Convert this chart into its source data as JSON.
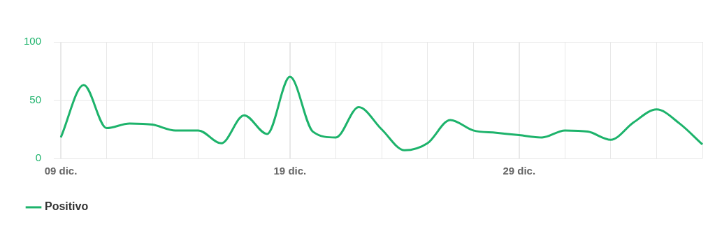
{
  "chart_data": {
    "type": "line",
    "categories": [
      "09 dic.",
      null,
      null,
      null,
      null,
      null,
      null,
      null,
      null,
      null,
      "19 dic.",
      null,
      null,
      null,
      null,
      null,
      null,
      null,
      null,
      null,
      "29 dic.",
      null,
      null,
      null,
      null,
      null,
      null,
      null,
      null
    ],
    "series": [
      {
        "name": "Positivo",
        "color": "#1db36b",
        "values": [
          18,
          63,
          26,
          30,
          29,
          24,
          24,
          13,
          37,
          21,
          70,
          23,
          18,
          44,
          25,
          7,
          13,
          33,
          24,
          22,
          20,
          18,
          24,
          23,
          16,
          31,
          42,
          30,
          12
        ]
      }
    ],
    "ylim": [
      0,
      100
    ],
    "yticks": [
      0,
      50,
      100
    ],
    "grid": true,
    "legend": "bottom left",
    "marker": "none",
    "line_style": "solid"
  }
}
